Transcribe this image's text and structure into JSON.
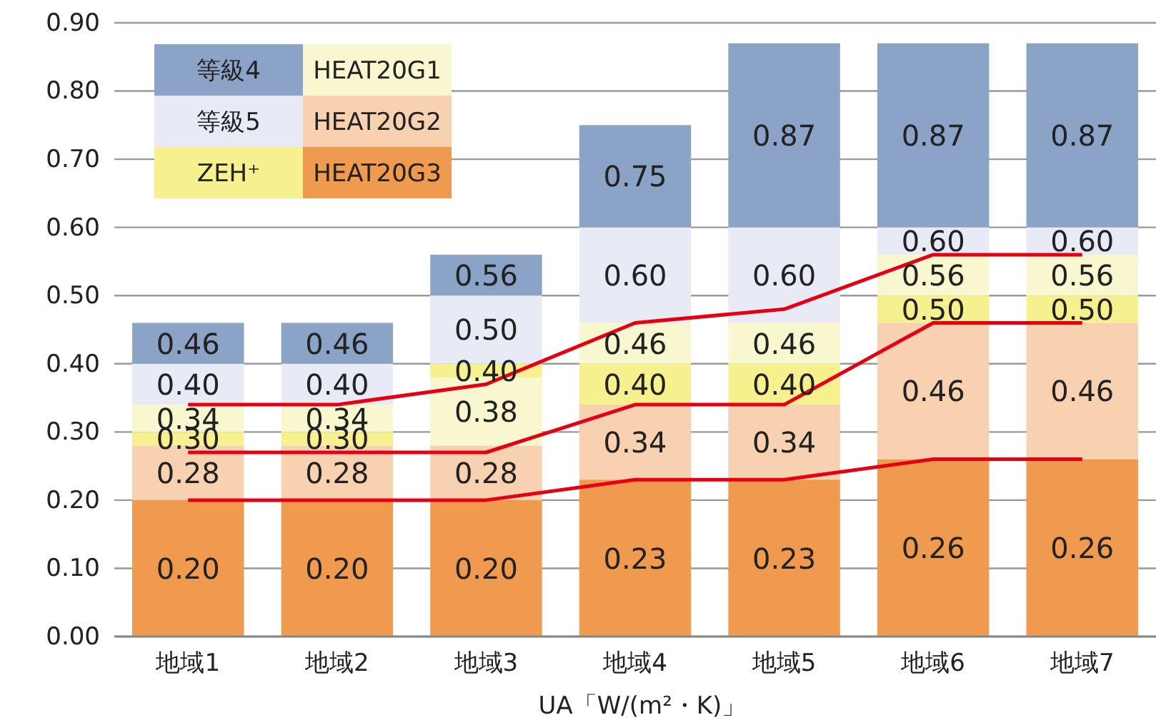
{
  "chart_data": {
    "type": "bar",
    "xlabel": "UA「W/(m²・K)」",
    "categories": [
      "地域1",
      "地域2",
      "地域3",
      "地域4",
      "地域5",
      "地域6",
      "地域7"
    ],
    "ylim": [
      0,
      0.9
    ],
    "yticks": [
      {
        "value": 0,
        "label": "0.00"
      },
      {
        "value": 0.1,
        "label": "0.10"
      },
      {
        "value": 0.2,
        "label": "0.20"
      },
      {
        "value": 0.3,
        "label": "0.30"
      },
      {
        "value": 0.4,
        "label": "0.40"
      },
      {
        "value": 0.5,
        "label": "0.50"
      },
      {
        "value": 0.6,
        "label": "0.60"
      },
      {
        "value": 0.7,
        "label": "0.70"
      },
      {
        "value": 0.8,
        "label": "0.80"
      },
      {
        "value": 0.9,
        "label": "0.90"
      }
    ],
    "grid": "y",
    "legend": "top left",
    "series": [
      {
        "name": "等級4",
        "color": "#8aa3c7",
        "base": [
          0.4,
          0.4,
          0.5,
          0.6,
          0.6,
          0.6,
          0.6
        ],
        "values": [
          0.06,
          0.06,
          0.06,
          0.15,
          0.27,
          0.27,
          0.27
        ],
        "value_labels": [
          "0.46",
          "0.46",
          "0.56",
          "0.75",
          "0.87",
          "0.87",
          "0.87"
        ]
      },
      {
        "name": "等級5",
        "color": "#e8eaf5",
        "base": [
          0.34,
          0.34,
          0.4,
          0.46,
          0.46,
          0.56,
          0.56
        ],
        "values": [
          0.06,
          0.06,
          0.1,
          0.14,
          0.14,
          0.04,
          0.04
        ],
        "value_labels": [
          "0.40",
          "0.40",
          "0.50",
          "0.60",
          "0.60",
          "0.60",
          "0.60"
        ]
      },
      {
        "name": "ZEH⁺",
        "color": "#f6f08e",
        "base": [
          0.28,
          0.28,
          0.38,
          0.34,
          0.34,
          0.46,
          0.46
        ],
        "values": [
          0.02,
          0.02,
          0.02,
          0.06,
          0.06,
          0.04,
          0.04
        ],
        "value_labels": [
          "0.30",
          "0.30",
          "0.40",
          "0.40",
          "0.40",
          "0.50",
          "0.50"
        ]
      },
      {
        "name": "HEAT20G1",
        "color": "#f9f7cf",
        "base": [
          0.3,
          0.3,
          0.28,
          0.4,
          0.4,
          0.5,
          0.5
        ],
        "values": [
          0.04,
          0.04,
          0.1,
          0.06,
          0.06,
          0.06,
          0.06
        ],
        "value_labels": [
          "0.34",
          "0.34",
          "0.38",
          "0.46",
          "0.46",
          "0.56",
          "0.56"
        ]
      },
      {
        "name": "HEAT20G2",
        "color": "#f8d1b0",
        "base": [
          0.2,
          0.2,
          0.2,
          0.23,
          0.23,
          0.26,
          0.26
        ],
        "values": [
          0.08,
          0.08,
          0.08,
          0.11,
          0.11,
          0.2,
          0.2
        ],
        "value_labels": [
          "0.28",
          "0.28",
          "0.28",
          "0.34",
          "0.34",
          "0.46",
          "0.46"
        ]
      },
      {
        "name": "HEAT20G3",
        "color": "#f09a50",
        "base": [
          0,
          0,
          0,
          0,
          0,
          0,
          0
        ],
        "values": [
          0.2,
          0.2,
          0.2,
          0.23,
          0.23,
          0.26,
          0.26
        ],
        "value_labels": [
          "0.20",
          "0.20",
          "0.20",
          "0.23",
          "0.23",
          "0.26",
          "0.26"
        ]
      },
      {
        "type": "line",
        "color": "#e60012",
        "values": [
          0.34,
          0.34,
          0.37,
          0.46,
          0.48,
          0.56,
          0.56
        ]
      },
      {
        "type": "line",
        "color": "#e60012",
        "values": [
          0.27,
          0.27,
          0.27,
          0.34,
          0.34,
          0.46,
          0.46
        ]
      },
      {
        "type": "line",
        "color": "#e60012",
        "values": [
          0.2,
          0.2,
          0.2,
          0.23,
          0.23,
          0.26,
          0.26
        ]
      }
    ]
  }
}
